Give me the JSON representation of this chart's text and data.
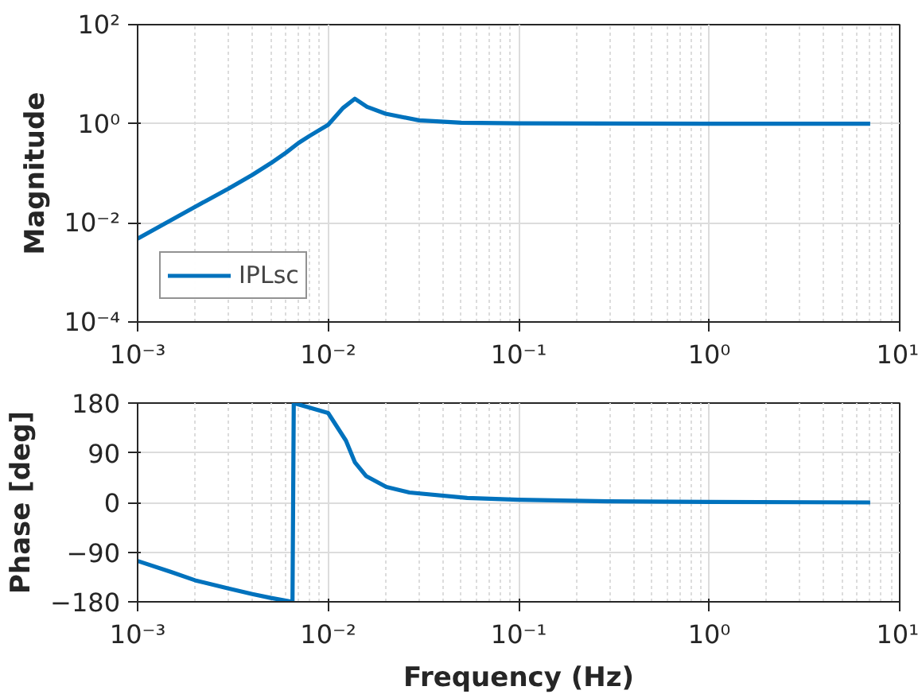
{
  "chart_data": [
    {
      "type": "line",
      "ylabel": "Magnitude",
      "log": "xy",
      "grid": true,
      "legend": "bottom left",
      "line_style": "solid",
      "marker": "none",
      "xlim": [
        0.001,
        10
      ],
      "ylim": [
        0.0001,
        100
      ],
      "xticks": [
        {
          "value": 0.001,
          "label": "10⁻³"
        },
        {
          "value": 0.01,
          "label": "10⁻²"
        },
        {
          "value": 0.1,
          "label": "10⁻¹"
        },
        {
          "value": 1,
          "label": "10⁰"
        },
        {
          "value": 10,
          "label": "10¹"
        }
      ],
      "yticks": [
        {
          "value": 0.0001,
          "label": "10⁻⁴"
        },
        {
          "value": 0.01,
          "label": "10⁻²"
        },
        {
          "value": 1,
          "label": "10⁰"
        },
        {
          "value": 100,
          "label": "10²"
        }
      ],
      "x": [
        0.001,
        0.002,
        0.003,
        0.004,
        0.005,
        0.006,
        0.007,
        0.008,
        0.01,
        0.012,
        0.0138,
        0.016,
        0.02,
        0.03,
        0.05,
        0.1,
        1,
        7
      ],
      "series": [
        {
          "name": "IPLsc",
          "color": "#0072bd",
          "values": [
            0.0048,
            0.021,
            0.049,
            0.093,
            0.16,
            0.26,
            0.41,
            0.57,
            0.95,
            2.1,
            3.2,
            2.2,
            1.6,
            1.17,
            1.05,
            1.02,
            1.0,
            1.0
          ]
        }
      ]
    },
    {
      "type": "line",
      "xlabel": "Frequency (Hz)",
      "ylabel": "Phase [deg]",
      "log": "x",
      "grid": true,
      "line_style": "solid",
      "marker": "none",
      "xlim": [
        0.001,
        10
      ],
      "ylim": [
        -180,
        180
      ],
      "xticks": [
        {
          "value": 0.001,
          "label": "10⁻³"
        },
        {
          "value": 0.01,
          "label": "10⁻²"
        },
        {
          "value": 0.1,
          "label": "10⁻¹"
        },
        {
          "value": 1,
          "label": "10⁰"
        },
        {
          "value": 10,
          "label": "10¹"
        }
      ],
      "yticks": [
        -180,
        -90,
        0,
        90,
        180
      ],
      "x": [
        0.001,
        0.0015,
        0.002,
        0.003,
        0.004,
        0.005,
        0.0065,
        0.0066,
        0.01,
        0.0124,
        0.0138,
        0.0158,
        0.0202,
        0.0267,
        0.0537,
        0.1,
        0.3,
        1,
        7
      ],
      "series": [
        {
          "color": "#0072bd",
          "values": [
            -106,
            -126,
            -141,
            -156,
            -166,
            -173,
            -180,
            180,
            162,
            112,
            73,
            48,
            28,
            18,
            8,
            5,
            2,
            1,
            0
          ]
        }
      ]
    }
  ]
}
